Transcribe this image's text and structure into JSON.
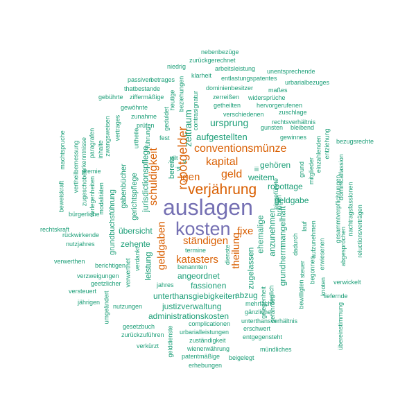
{
  "colors": {
    "large": "#7570b3",
    "medium": "#d95f02",
    "small": "#1b9e77"
  },
  "words": [
    {
      "text": "auslagen",
      "size": "large",
      "rot": 0
    },
    {
      "text": "kosten",
      "size": "large",
      "rot": 0
    },
    {
      "text": "verjährung",
      "size": "medium",
      "rot": 0
    },
    {
      "text": "robotgelder",
      "size": "medium",
      "rot": 1
    },
    {
      "text": "conventionsmünze",
      "size": "medium",
      "rot": 0
    },
    {
      "text": "kapital",
      "size": "medium",
      "rot": 0
    },
    {
      "text": "igen",
      "size": "medium",
      "rot": 0
    },
    {
      "text": "geld",
      "size": "medium",
      "rot": 0
    },
    {
      "text": "schuldigkeit",
      "size": "medium",
      "rot": 1
    },
    {
      "text": "ständigen",
      "size": "medium",
      "rot": 0
    },
    {
      "text": "katasters",
      "size": "medium",
      "rot": 0
    },
    {
      "text": "fixe",
      "size": "medium",
      "rot": 0
    },
    {
      "text": "theilung",
      "size": "medium",
      "rot": 1
    },
    {
      "text": "geldgaben",
      "size": "medium",
      "rot": 1
    },
    {
      "text": "zeitraum",
      "size": "small",
      "rot": 1
    },
    {
      "text": "ursprung",
      "size": "small",
      "rot": 0
    },
    {
      "text": "aufgestellten",
      "size": "small",
      "rot": 0
    },
    {
      "text": "gehören",
      "size": "small",
      "rot": 0
    },
    {
      "text": "weitem",
      "size": "small",
      "rot": 0
    },
    {
      "text": "robottage",
      "size": "small",
      "rot": 0
    },
    {
      "text": "geldgabe",
      "size": "small",
      "rot": 0
    },
    {
      "text": "mangelhaft",
      "size": "small",
      "rot": 1
    },
    {
      "text": "anzunehmen",
      "size": "small",
      "rot": 1
    },
    {
      "text": "grundherrn",
      "size": "small",
      "rot": 1
    },
    {
      "text": "ehemalige",
      "size": "small",
      "rot": 1
    },
    {
      "text": "zugelassen",
      "size": "small",
      "rot": 1
    },
    {
      "text": "abzug",
      "size": "small",
      "rot": 0
    },
    {
      "text": "fassionen",
      "size": "small",
      "rot": 0
    },
    {
      "text": "angeordnet",
      "size": "small",
      "rot": 0
    },
    {
      "text": "zehente",
      "size": "small",
      "rot": 0
    },
    {
      "text": "übersicht",
      "size": "small",
      "rot": 0
    },
    {
      "text": "leistung",
      "size": "small",
      "rot": 1
    },
    {
      "text": "unterthansgiebigkeiten",
      "size": "small",
      "rot": 0
    },
    {
      "text": "justizverwaltung",
      "size": "small",
      "rot": 0
    },
    {
      "text": "administrationskosten",
      "size": "small",
      "rot": 0
    },
    {
      "text": "jurisdictionspflege",
      "size": "small",
      "rot": 1
    },
    {
      "text": "gerichtspflege",
      "size": "small",
      "rot": 1
    },
    {
      "text": "gabenbücher",
      "size": "small",
      "rot": 1
    },
    {
      "text": "grundbuchsführung",
      "size": "small",
      "rot": 1
    },
    {
      "text": "bereits",
      "size": "small",
      "rot": 1
    },
    {
      "text": "geldgabe2",
      "size": "small",
      "rot": 0,
      "skip": true
    },
    {
      "text": "nebenbezüge",
      "size": "small",
      "rot": 0
    },
    {
      "text": "zurückgerechnet",
      "size": "small",
      "rot": 0
    },
    {
      "text": "niedrig",
      "size": "small",
      "rot": 0
    },
    {
      "text": "arbeitsleistung",
      "size": "small",
      "rot": 0
    },
    {
      "text": "unentsprechende",
      "size": "small",
      "rot": 0
    },
    {
      "text": "passiven",
      "size": "small",
      "rot": 0
    },
    {
      "text": "betrages",
      "size": "small",
      "rot": 0
    },
    {
      "text": "klarheit",
      "size": "small",
      "rot": 0
    },
    {
      "text": "entlastungspatentes",
      "size": "small",
      "rot": 0
    },
    {
      "text": "urbarialbezuges",
      "size": "small",
      "rot": 0
    },
    {
      "text": "thatbestande",
      "size": "small",
      "rot": 0
    },
    {
      "text": "dominienbesitzer",
      "size": "small",
      "rot": 0
    },
    {
      "text": "maßes",
      "size": "small",
      "rot": 0
    },
    {
      "text": "gebührte",
      "size": "small",
      "rot": 0
    },
    {
      "text": "ziffermäßige",
      "size": "small",
      "rot": 0
    },
    {
      "text": "zerreißen",
      "size": "small",
      "rot": 0
    },
    {
      "text": "widersprüche",
      "size": "small",
      "rot": 0
    },
    {
      "text": "getheilten",
      "size": "small",
      "rot": 0
    },
    {
      "text": "hervorgerufenen",
      "size": "small",
      "rot": 0
    },
    {
      "text": "gewöhnte",
      "size": "small",
      "rot": 0
    },
    {
      "text": "verschiedenen",
      "size": "small",
      "rot": 0
    },
    {
      "text": "zuschlage",
      "size": "small",
      "rot": 0
    },
    {
      "text": "zunahme",
      "size": "small",
      "rot": 0
    },
    {
      "text": "rechtsverhältnis",
      "size": "small",
      "rot": 0
    },
    {
      "text": "prüfen",
      "size": "small",
      "rot": 0
    },
    {
      "text": "gunsten",
      "size": "small",
      "rot": 0
    },
    {
      "text": "bleibend",
      "size": "small",
      "rot": 0
    },
    {
      "text": "gewinnes",
      "size": "small",
      "rot": 0
    },
    {
      "text": "fest",
      "size": "small",
      "rot": 0
    },
    {
      "text": "bezugsrechte",
      "size": "small",
      "rot": 0
    },
    {
      "text": "gilt",
      "size": "small",
      "rot": 0
    },
    {
      "text": "vi",
      "size": "small",
      "rot": 1
    },
    {
      "text": "v",
      "size": "small",
      "rot": 0
    },
    {
      "text": "iii",
      "size": "small",
      "rot": 0
    },
    {
      "text": "beziehungen",
      "size": "small",
      "rot": 1
    },
    {
      "text": "heutige",
      "size": "small",
      "rot": 1
    },
    {
      "text": "geduldet",
      "size": "small",
      "rot": 1
    },
    {
      "text": "contrasignatur",
      "size": "small",
      "rot": 1
    },
    {
      "text": "eingeführte",
      "size": "small",
      "rot": 1
    },
    {
      "text": "führung",
      "size": "small",
      "rot": 1
    },
    {
      "text": "urtheile",
      "size": "small",
      "rot": 1
    },
    {
      "text": "vertrages",
      "size": "small",
      "rot": 1
    },
    {
      "text": "zwangsweisen",
      "size": "small",
      "rot": 1
    },
    {
      "text": "inhalte",
      "size": "small",
      "rot": 1
    },
    {
      "text": "paragrafen",
      "size": "small",
      "rot": 1
    },
    {
      "text": "erkenntnisse",
      "size": "small",
      "rot": 1
    },
    {
      "text": "vertheilbemessung",
      "size": "small",
      "rot": 1
    },
    {
      "text": "zugeschoben",
      "size": "small",
      "rot": 1
    },
    {
      "text": "verlegenheiten",
      "size": "small",
      "rot": 1
    },
    {
      "text": "modalitäten",
      "size": "small",
      "rot": 1
    },
    {
      "text": "machtspruche",
      "size": "small",
      "rot": 1
    },
    {
      "text": "beweiskraft",
      "size": "small",
      "rot": 1
    },
    {
      "text": "premie",
      "size": "small",
      "rot": 0
    },
    {
      "text": "bürgerliche",
      "size": "small",
      "rot": 0
    },
    {
      "text": "rechtskraft",
      "size": "small",
      "rot": 0
    },
    {
      "text": "rückwirkende",
      "size": "small",
      "rot": 0
    },
    {
      "text": "nutzjahres",
      "size": "small",
      "rot": 0
    },
    {
      "text": "verwerthen",
      "size": "small",
      "rot": 0
    },
    {
      "text": "berichtigen",
      "size": "small",
      "rot": 0
    },
    {
      "text": "verzweigungen",
      "size": "small",
      "rot": 0
    },
    {
      "text": "geetzlicher",
      "size": "small",
      "rot": 0
    },
    {
      "text": "versteuert",
      "size": "small",
      "rot": 0
    },
    {
      "text": "jährigen",
      "size": "small",
      "rot": 0
    },
    {
      "text": "verwerthet",
      "size": "small",
      "rot": 1
    },
    {
      "text": "verdankt",
      "size": "small",
      "rot": 1
    },
    {
      "text": "jahres",
      "size": "small",
      "rot": 0
    },
    {
      "text": "umgeändert",
      "size": "small",
      "rot": 1
    },
    {
      "text": "nutzungen",
      "size": "small",
      "rot": 0
    },
    {
      "text": "gesetzbuch",
      "size": "small",
      "rot": 0
    },
    {
      "text": "zurückzuführen",
      "size": "small",
      "rot": 0
    },
    {
      "text": "verkürzt",
      "size": "small",
      "rot": 0
    },
    {
      "text": "gelddienste",
      "size": "small",
      "rot": 1
    },
    {
      "text": "complicationen",
      "size": "small",
      "rot": 0
    },
    {
      "text": "urbarialleistungen",
      "size": "small",
      "rot": 0
    },
    {
      "text": "zuständigkeit",
      "size": "small",
      "rot": 0
    },
    {
      "text": "wienerwährung",
      "size": "small",
      "rot": 0
    },
    {
      "text": "patentmäßige",
      "size": "small",
      "rot": 0
    },
    {
      "text": "erhebungen",
      "size": "small",
      "rot": 0
    },
    {
      "text": "beigelegt",
      "size": "small",
      "rot": 0
    },
    {
      "text": "mündliches",
      "size": "small",
      "rot": 0
    },
    {
      "text": "entgegensteht",
      "size": "small",
      "rot": 0
    },
    {
      "text": "erschwert",
      "size": "small",
      "rot": 0
    },
    {
      "text": "unterthansverhältnis",
      "size": "small",
      "rot": 0
    },
    {
      "text": "gänzliche",
      "size": "small",
      "rot": 0
    },
    {
      "text": "mehrfach",
      "size": "small",
      "rot": 0
    },
    {
      "text": "termine",
      "size": "small",
      "rot": 0
    },
    {
      "text": "benannten",
      "size": "small",
      "rot": 0
    },
    {
      "text": "dienste",
      "size": "small",
      "rot": 1
    },
    {
      "text": "gelegenheit",
      "size": "small",
      "rot": 1
    },
    {
      "text": "soglich",
      "size": "small",
      "rot": 1
    },
    {
      "text": "gefährden",
      "size": "small",
      "rot": 1
    },
    {
      "text": "dadurch",
      "size": "small",
      "rot": 1
    },
    {
      "text": "lauf",
      "size": "small",
      "rot": 1
    },
    {
      "text": "bringen",
      "size": "small",
      "rot": 1
    },
    {
      "text": "grund",
      "size": "small",
      "rot": 1
    },
    {
      "text": "steuer",
      "size": "small",
      "rot": 1
    },
    {
      "text": "bewilligten",
      "size": "small",
      "rot": 1
    },
    {
      "text": "begonnen",
      "size": "small",
      "rot": 1
    },
    {
      "text": "aufzunehmen",
      "size": "small",
      "rot": 1
    },
    {
      "text": "erwiesenen",
      "size": "small",
      "rot": 1
    },
    {
      "text": "knoten",
      "size": "small",
      "rot": 1
    },
    {
      "text": "übereinstimmung",
      "size": "small",
      "rot": 1
    },
    {
      "text": "mitglieder",
      "size": "small",
      "rot": 1
    },
    {
      "text": "einzahlenden",
      "size": "small",
      "rot": 1
    },
    {
      "text": "entziehung",
      "size": "small",
      "rot": 1
    },
    {
      "text": "abgesprochen",
      "size": "small",
      "rot": 1
    },
    {
      "text": "gesammtverpflichtungen",
      "size": "small",
      "rot": 1
    },
    {
      "text": "dominicalfassion",
      "size": "small",
      "rot": 1
    },
    {
      "text": "nachtragsfassionen",
      "size": "small",
      "rot": 1
    },
    {
      "text": "reluctionsverträgen",
      "size": "small",
      "rot": 1
    },
    {
      "text": "liefernde",
      "size": "small",
      "rot": 0
    },
    {
      "text": "verwickelt",
      "size": "small",
      "rot": 0
    }
  ]
}
